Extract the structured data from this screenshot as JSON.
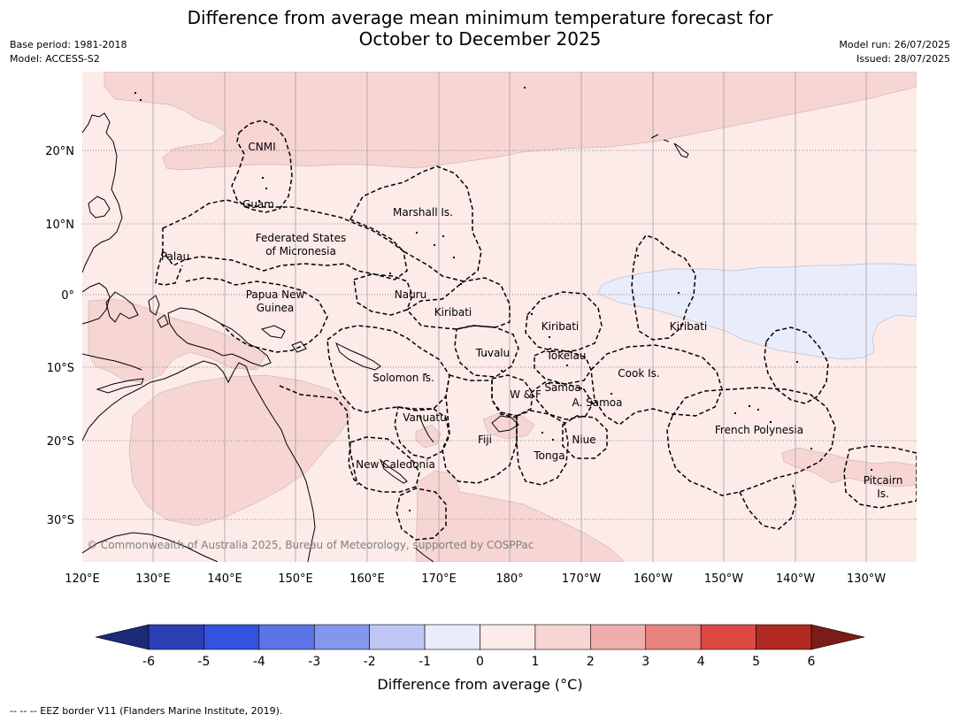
{
  "title_line1": "Difference from average mean minimum temperature forecast for",
  "title_line2": "October to December 2025",
  "base_period": "Base period: 1981-2018",
  "model": "Model: ACCESS-S2",
  "model_run": "Model run: 26/07/2025",
  "issued": "Issued: 28/07/2025",
  "lon_ticks": [
    "120°E",
    "130°E",
    "140°E",
    "150°E",
    "160°E",
    "170°E",
    "180°",
    "170°W",
    "160°W",
    "150°W",
    "140°W",
    "130°W"
  ],
  "lat_ticks": [
    "20°N",
    "10°N",
    "0°",
    "10°S",
    "20°S",
    "30°S"
  ],
  "region_labels": {
    "cnmi": "CNMI",
    "guam": "Guam",
    "marshall": "Marshall Is.",
    "fsm_1": "Federated States",
    "fsm_2": "of Micronesia",
    "palau": "Palau",
    "png_1": "Papua New",
    "png_2": "Guinea",
    "nauru": "Nauru",
    "kiribati_w": "Kiribati",
    "kiribati_c": "Kiribati",
    "kiribati_e": "Kiribati",
    "tuvalu": "Tuvalu",
    "tokelau": "Tokelau",
    "solomon": "Solomon Is.",
    "wf": "W & F",
    "samoa": "Samoa",
    "asamoa": "A. Samoa",
    "cook": "Cook Is.",
    "vanuatu": "Vanuatu",
    "fiji": "Fiji",
    "niue": "Niue",
    "tonga": "Tonga",
    "french_polynesia": "French Polynesia",
    "new_caledonia": "New Caledonia",
    "pitcairn_1": "Pitcairn",
    "pitcairn_2": "Is."
  },
  "copyright": "© Commonwealth of Australia 2025, Bureau of Meteorology, supported by COSPPac",
  "colorbar": {
    "title": "Difference from average (°C)",
    "tick_labels": [
      "-6",
      "-5",
      "-4",
      "-3",
      "-2",
      "-1",
      "0",
      "1",
      "2",
      "3",
      "4",
      "5",
      "6"
    ],
    "colors": {
      "lt_minus6": "#1c2a78",
      "m6_m5": "#2a3fb3",
      "m5_m4": "#3452e0",
      "m4_m3": "#5c74e6",
      "m3_m2": "#8597ec",
      "m2_m1": "#bec7f4",
      "m1_0": "#e8ecfb",
      "p0_1": "#fcebe8",
      "p1_2": "#f7d5d3",
      "p2_3": "#efaeab",
      "p3_4": "#e8847f",
      "p4_5": "#dc4a42",
      "p5_6": "#b02a22",
      "gt_6": "#7a1c18"
    }
  },
  "footer": "--  --  -- EEZ border V11 (Flanders Marine Institute, 2019)."
}
